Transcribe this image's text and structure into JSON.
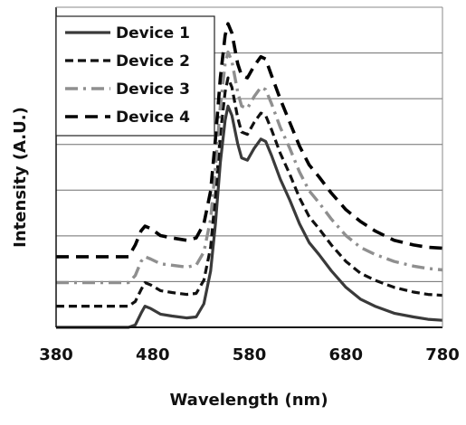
{
  "chart_data": {
    "type": "line",
    "title": "",
    "xlabel": "Wavelength (nm)",
    "ylabel": "Intensity (A.U.)",
    "xlim": [
      380,
      780
    ],
    "x_ticks": [
      380,
      480,
      580,
      680,
      780
    ],
    "ylim": [
      0,
      6.8
    ],
    "y_tick_labels_shown": false,
    "grid": "horizontal",
    "legend_position": "top-left",
    "series": [
      {
        "name": "Device 1",
        "color": "#3a3a3a",
        "style": "solid",
        "points": [
          [
            380,
            0
          ],
          [
            455,
            0
          ],
          [
            462,
            0.05
          ],
          [
            468,
            0.3
          ],
          [
            472,
            0.45
          ],
          [
            478,
            0.4
          ],
          [
            488,
            0.28
          ],
          [
            500,
            0.24
          ],
          [
            515,
            0.2
          ],
          [
            525,
            0.22
          ],
          [
            533,
            0.5
          ],
          [
            540,
            1.2
          ],
          [
            545,
            2.2
          ],
          [
            550,
            3.5
          ],
          [
            555,
            4.4
          ],
          [
            558,
            4.7
          ],
          [
            562,
            4.5
          ],
          [
            568,
            3.9
          ],
          [
            572,
            3.6
          ],
          [
            578,
            3.55
          ],
          [
            585,
            3.8
          ],
          [
            592,
            4.0
          ],
          [
            597,
            3.95
          ],
          [
            603,
            3.65
          ],
          [
            612,
            3.15
          ],
          [
            622,
            2.7
          ],
          [
            632,
            2.2
          ],
          [
            642,
            1.8
          ],
          [
            652,
            1.55
          ],
          [
            665,
            1.2
          ],
          [
            680,
            0.85
          ],
          [
            695,
            0.6
          ],
          [
            710,
            0.45
          ],
          [
            730,
            0.3
          ],
          [
            750,
            0.22
          ],
          [
            765,
            0.17
          ],
          [
            780,
            0.15
          ]
        ]
      },
      {
        "name": "Device 2",
        "color": "#111111",
        "style": "dash",
        "points": [
          [
            380,
            0.45
          ],
          [
            455,
            0.45
          ],
          [
            462,
            0.55
          ],
          [
            468,
            0.8
          ],
          [
            472,
            0.95
          ],
          [
            478,
            0.9
          ],
          [
            488,
            0.78
          ],
          [
            500,
            0.74
          ],
          [
            515,
            0.7
          ],
          [
            525,
            0.72
          ],
          [
            533,
            1.0
          ],
          [
            540,
            1.7
          ],
          [
            545,
            2.8
          ],
          [
            550,
            4.1
          ],
          [
            555,
            5.0
          ],
          [
            558,
            5.3
          ],
          [
            562,
            5.1
          ],
          [
            568,
            4.45
          ],
          [
            572,
            4.15
          ],
          [
            578,
            4.1
          ],
          [
            585,
            4.35
          ],
          [
            592,
            4.55
          ],
          [
            597,
            4.5
          ],
          [
            603,
            4.2
          ],
          [
            612,
            3.7
          ],
          [
            622,
            3.25
          ],
          [
            632,
            2.75
          ],
          [
            642,
            2.35
          ],
          [
            652,
            2.1
          ],
          [
            665,
            1.75
          ],
          [
            680,
            1.4
          ],
          [
            695,
            1.15
          ],
          [
            710,
            1.0
          ],
          [
            730,
            0.85
          ],
          [
            750,
            0.75
          ],
          [
            765,
            0.7
          ],
          [
            780,
            0.68
          ]
        ]
      },
      {
        "name": "Device 3",
        "color": "#8f8f8f",
        "style": "dashdot",
        "points": [
          [
            380,
            0.95
          ],
          [
            455,
            0.95
          ],
          [
            462,
            1.1
          ],
          [
            468,
            1.4
          ],
          [
            472,
            1.5
          ],
          [
            478,
            1.45
          ],
          [
            488,
            1.35
          ],
          [
            500,
            1.32
          ],
          [
            515,
            1.28
          ],
          [
            525,
            1.32
          ],
          [
            533,
            1.6
          ],
          [
            540,
            2.3
          ],
          [
            545,
            3.4
          ],
          [
            550,
            4.7
          ],
          [
            555,
            5.6
          ],
          [
            558,
            5.85
          ],
          [
            562,
            5.65
          ],
          [
            568,
            5.0
          ],
          [
            572,
            4.7
          ],
          [
            578,
            4.65
          ],
          [
            585,
            4.9
          ],
          [
            592,
            5.1
          ],
          [
            597,
            5.05
          ],
          [
            603,
            4.75
          ],
          [
            612,
            4.25
          ],
          [
            622,
            3.8
          ],
          [
            632,
            3.3
          ],
          [
            642,
            2.9
          ],
          [
            652,
            2.65
          ],
          [
            665,
            2.3
          ],
          [
            680,
            1.95
          ],
          [
            695,
            1.7
          ],
          [
            710,
            1.55
          ],
          [
            730,
            1.4
          ],
          [
            750,
            1.3
          ],
          [
            765,
            1.25
          ],
          [
            780,
            1.22
          ]
        ]
      },
      {
        "name": "Device 4",
        "color": "#000000",
        "style": "longdash",
        "points": [
          [
            380,
            1.5
          ],
          [
            455,
            1.5
          ],
          [
            462,
            1.75
          ],
          [
            468,
            2.05
          ],
          [
            472,
            2.15
          ],
          [
            478,
            2.1
          ],
          [
            488,
            1.95
          ],
          [
            500,
            1.9
          ],
          [
            515,
            1.85
          ],
          [
            525,
            1.9
          ],
          [
            533,
            2.2
          ],
          [
            540,
            2.9
          ],
          [
            545,
            4.0
          ],
          [
            550,
            5.3
          ],
          [
            555,
            6.2
          ],
          [
            558,
            6.45
          ],
          [
            562,
            6.25
          ],
          [
            568,
            5.6
          ],
          [
            572,
            5.35
          ],
          [
            578,
            5.3
          ],
          [
            585,
            5.55
          ],
          [
            592,
            5.75
          ],
          [
            597,
            5.7
          ],
          [
            603,
            5.35
          ],
          [
            612,
            4.85
          ],
          [
            622,
            4.35
          ],
          [
            632,
            3.85
          ],
          [
            642,
            3.45
          ],
          [
            652,
            3.2
          ],
          [
            665,
            2.85
          ],
          [
            680,
            2.5
          ],
          [
            695,
            2.25
          ],
          [
            710,
            2.05
          ],
          [
            730,
            1.85
          ],
          [
            750,
            1.75
          ],
          [
            765,
            1.7
          ],
          [
            780,
            1.68
          ]
        ]
      }
    ]
  }
}
